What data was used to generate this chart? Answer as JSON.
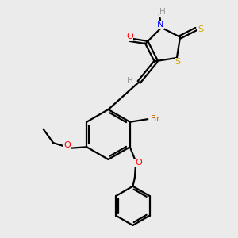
{
  "background_color": "#ebebeb",
  "atom_colors": {
    "O": "#ff0000",
    "N": "#0000ff",
    "S": "#ccaa00",
    "Br": "#cc6600",
    "H": "#999999",
    "C": "#000000"
  },
  "bond_color": "#000000",
  "bond_width": 1.6,
  "fig_w": 3.0,
  "fig_h": 3.0,
  "dpi": 100
}
